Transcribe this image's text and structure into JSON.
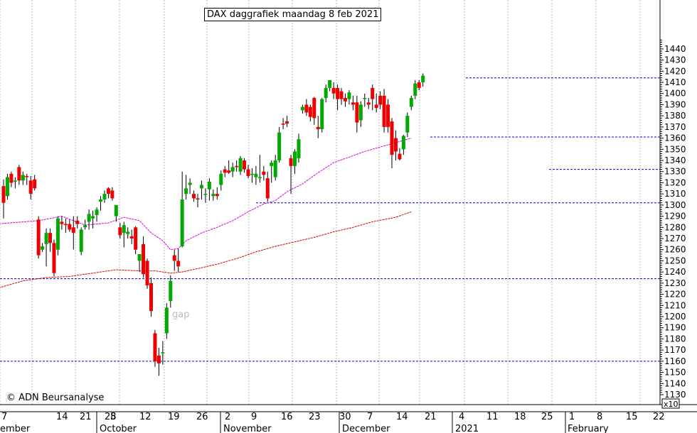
{
  "chart_data": {
    "type": "candlestick",
    "title": "DAX daggrafiek maandag 8 feb 2021",
    "copyright": "© ADN Beursanalyse",
    "annotation": "gap",
    "y_multiplier_label": "x10",
    "ylim": [
      1123,
      1448
    ],
    "y_ticks": [
      1130,
      1140,
      1150,
      1160,
      1170,
      1180,
      1190,
      1200,
      1210,
      1220,
      1230,
      1240,
      1250,
      1260,
      1270,
      1280,
      1290,
      1300,
      1310,
      1320,
      1330,
      1340,
      1350,
      1360,
      1370,
      1380,
      1390,
      1400,
      1410,
      1420,
      1430,
      1440
    ],
    "x_tick_labels": [
      "7",
      "14",
      "21",
      "28",
      "5",
      "12",
      "19",
      "26",
      "2",
      "9",
      "16",
      "23",
      "30",
      "7",
      "14",
      "21",
      "4",
      "11",
      "18",
      "25",
      "1",
      "8",
      "15",
      "22"
    ],
    "month_labels": [
      "ember",
      "October",
      "November",
      "December",
      "2021",
      "February"
    ],
    "grid": true,
    "colors": {
      "up": "#00aa00",
      "down": "#ee0000",
      "ma_short": "#dd00dd",
      "ma_long": "#dd0000",
      "levels": "#0000cc",
      "grid": "#bbbbbb"
    },
    "support_resistance_levels": [
      1414,
      1361,
      1332,
      1302,
      1234,
      1160
    ],
    "candles": [
      {
        "date": "2020-09-04",
        "open": 1317,
        "high": 1323,
        "low": 1288,
        "close": 1302
      },
      {
        "date": "2020-09-07",
        "open": 1308,
        "high": 1328,
        "low": 1305,
        "close": 1325
      },
      {
        "date": "2020-09-08",
        "open": 1328,
        "high": 1330,
        "low": 1316,
        "close": 1320
      },
      {
        "date": "2020-09-09",
        "open": 1322,
        "high": 1325,
        "low": 1315,
        "close": 1322
      },
      {
        "date": "2020-09-10",
        "open": 1334,
        "high": 1336,
        "low": 1318,
        "close": 1322
      },
      {
        "date": "2020-09-11",
        "open": 1322,
        "high": 1330,
        "low": 1318,
        "close": 1327
      },
      {
        "date": "2020-09-14",
        "open": 1326,
        "high": 1328,
        "low": 1318,
        "close": 1325
      },
      {
        "date": "2020-09-15",
        "open": 1322,
        "high": 1326,
        "low": 1305,
        "close": 1310
      },
      {
        "date": "2020-09-16",
        "open": 1323,
        "high": 1327,
        "low": 1313,
        "close": 1315
      },
      {
        "date": "2020-09-17",
        "open": 1287,
        "high": 1290,
        "low": 1252,
        "close": 1255
      },
      {
        "date": "2020-09-18",
        "open": 1260,
        "high": 1266,
        "low": 1258,
        "close": 1263
      },
      {
        "date": "2020-09-21",
        "open": 1265,
        "high": 1279,
        "low": 1245,
        "close": 1275
      },
      {
        "date": "2020-09-22",
        "open": 1275,
        "high": 1279,
        "low": 1258,
        "close": 1266
      },
      {
        "date": "2020-09-23",
        "open": 1266,
        "high": 1269,
        "low": 1236,
        "close": 1239
      },
      {
        "date": "2020-09-24",
        "open": 1260,
        "high": 1290,
        "low": 1255,
        "close": 1288
      },
      {
        "date": "2020-09-25",
        "open": 1285,
        "high": 1290,
        "low": 1278,
        "close": 1283
      },
      {
        "date": "2020-09-28",
        "open": 1283,
        "high": 1288,
        "low": 1275,
        "close": 1282
      },
      {
        "date": "2020-09-29",
        "open": 1283,
        "high": 1287,
        "low": 1276,
        "close": 1278
      },
      {
        "date": "2020-09-30",
        "open": 1280,
        "high": 1290,
        "low": 1260,
        "close": 1275
      },
      {
        "date": "2020-10-01",
        "open": 1286,
        "high": 1290,
        "low": 1279,
        "close": 1283
      },
      {
        "date": "2020-10-02",
        "open": 1258,
        "high": 1280,
        "low": 1255,
        "close": 1278
      },
      {
        "date": "2020-10-05",
        "open": 1280,
        "high": 1287,
        "low": 1278,
        "close": 1282
      },
      {
        "date": "2020-10-06",
        "open": 1285,
        "high": 1296,
        "low": 1278,
        "close": 1292
      },
      {
        "date": "2020-10-07",
        "open": 1288,
        "high": 1295,
        "low": 1279,
        "close": 1290
      },
      {
        "date": "2020-10-08",
        "open": 1291,
        "high": 1298,
        "low": 1285,
        "close": 1296
      },
      {
        "date": "2020-10-09",
        "open": 1303,
        "high": 1308,
        "low": 1295,
        "close": 1305
      },
      {
        "date": "2020-10-12",
        "open": 1305,
        "high": 1313,
        "low": 1302,
        "close": 1310
      },
      {
        "date": "2020-10-13",
        "open": 1315,
        "high": 1316,
        "low": 1306,
        "close": 1310
      },
      {
        "date": "2020-10-14",
        "open": 1313,
        "high": 1316,
        "low": 1304,
        "close": 1306
      },
      {
        "date": "2020-10-15",
        "open": 1290,
        "high": 1297,
        "low": 1285,
        "close": 1300
      },
      {
        "date": "2020-10-16",
        "open": 1280,
        "high": 1284,
        "low": 1270,
        "close": 1273
      },
      {
        "date": "2020-10-19",
        "open": 1275,
        "high": 1285,
        "low": 1262,
        "close": 1282
      },
      {
        "date": "2020-10-20",
        "open": 1274,
        "high": 1280,
        "low": 1270,
        "close": 1276
      },
      {
        "date": "2020-10-21",
        "open": 1272,
        "high": 1278,
        "low": 1265,
        "close": 1270
      },
      {
        "date": "2020-10-22",
        "open": 1280,
        "high": 1281,
        "low": 1256,
        "close": 1260
      },
      {
        "date": "2020-10-23",
        "open": 1250,
        "high": 1255,
        "low": 1240,
        "close": 1256
      },
      {
        "date": "2020-10-26",
        "open": 1265,
        "high": 1272,
        "low": 1235,
        "close": 1238
      },
      {
        "date": "2020-10-27",
        "open": 1250,
        "high": 1252,
        "low": 1225,
        "close": 1228
      },
      {
        "date": "2020-10-28",
        "open": 1230,
        "high": 1235,
        "low": 1200,
        "close": 1205
      },
      {
        "date": "2020-10-29",
        "open": 1185,
        "high": 1188,
        "low": 1155,
        "close": 1160
      },
      {
        "date": "2020-10-30",
        "open": 1165,
        "high": 1172,
        "low": 1147,
        "close": 1158
      },
      {
        "date": "2020-11-02",
        "open": 1168,
        "high": 1178,
        "low": 1157,
        "close": 1168
      },
      {
        "date": "2020-11-03",
        "open": 1185,
        "high": 1212,
        "low": 1180,
        "close": 1208
      },
      {
        "date": "2020-11-04",
        "open": 1214,
        "high": 1237,
        "low": 1208,
        "close": 1232
      },
      {
        "date": "2020-11-05",
        "open": 1255,
        "high": 1260,
        "low": 1241,
        "close": 1250
      },
      {
        "date": "2020-11-06",
        "open": 1250,
        "high": 1261,
        "low": 1240,
        "close": 1245
      },
      {
        "date": "2020-11-09",
        "open": 1263,
        "high": 1330,
        "low": 1262,
        "close": 1305
      },
      {
        "date": "2020-11-10",
        "open": 1310,
        "high": 1327,
        "low": 1305,
        "close": 1315
      },
      {
        "date": "2020-11-11",
        "open": 1318,
        "high": 1324,
        "low": 1310,
        "close": 1320
      },
      {
        "date": "2020-11-12",
        "open": 1310,
        "high": 1313,
        "low": 1303,
        "close": 1306
      },
      {
        "date": "2020-11-13",
        "open": 1306,
        "high": 1310,
        "low": 1298,
        "close": 1305
      },
      {
        "date": "2020-11-16",
        "open": 1315,
        "high": 1322,
        "low": 1305,
        "close": 1318
      },
      {
        "date": "2020-11-17",
        "open": 1310,
        "high": 1315,
        "low": 1302,
        "close": 1310
      },
      {
        "date": "2020-11-18",
        "open": 1314,
        "high": 1324,
        "low": 1304,
        "close": 1321
      },
      {
        "date": "2020-11-19",
        "open": 1308,
        "high": 1314,
        "low": 1304,
        "close": 1310
      },
      {
        "date": "2020-11-20",
        "open": 1310,
        "high": 1316,
        "low": 1305,
        "close": 1308
      },
      {
        "date": "2020-11-23",
        "open": 1318,
        "high": 1331,
        "low": 1313,
        "close": 1328
      },
      {
        "date": "2020-11-24",
        "open": 1332,
        "high": 1335,
        "low": 1325,
        "close": 1329
      },
      {
        "date": "2020-11-25",
        "open": 1331,
        "high": 1340,
        "low": 1328,
        "close": 1329
      },
      {
        "date": "2020-11-26",
        "open": 1330,
        "high": 1338,
        "low": 1325,
        "close": 1334
      },
      {
        "date": "2020-11-27",
        "open": 1335,
        "high": 1340,
        "low": 1330,
        "close": 1334
      },
      {
        "date": "2020-11-30",
        "open": 1330,
        "high": 1344,
        "low": 1327,
        "close": 1342
      },
      {
        "date": "2020-12-01",
        "open": 1340,
        "high": 1342,
        "low": 1329,
        "close": 1332
      },
      {
        "date": "2020-12-02",
        "open": 1332,
        "high": 1336,
        "low": 1324,
        "close": 1326
      },
      {
        "date": "2020-12-03",
        "open": 1328,
        "high": 1333,
        "low": 1320,
        "close": 1328
      },
      {
        "date": "2020-12-04",
        "open": 1325,
        "high": 1335,
        "low": 1318,
        "close": 1328
      },
      {
        "date": "2020-12-07",
        "open": 1325,
        "high": 1345,
        "low": 1320,
        "close": 1325
      },
      {
        "date": "2020-12-08",
        "open": 1330,
        "high": 1335,
        "low": 1322,
        "close": 1327
      },
      {
        "date": "2020-12-09",
        "open": 1324,
        "high": 1330,
        "low": 1303,
        "close": 1306
      },
      {
        "date": "2020-12-10",
        "open": 1335,
        "high": 1340,
        "low": 1320,
        "close": 1338
      },
      {
        "date": "2020-12-11",
        "open": 1325,
        "high": 1345,
        "low": 1322,
        "close": 1340
      },
      {
        "date": "2020-12-14",
        "open": 1340,
        "high": 1370,
        "low": 1338,
        "close": 1365
      },
      {
        "date": "2020-12-15",
        "open": 1373,
        "high": 1378,
        "low": 1368,
        "close": 1372
      },
      {
        "date": "2020-12-16",
        "open": 1375,
        "high": 1380,
        "low": 1370,
        "close": 1373
      },
      {
        "date": "2020-12-17",
        "open": 1342,
        "high": 1345,
        "low": 1310,
        "close": 1335
      },
      {
        "date": "2020-12-18",
        "open": 1335,
        "high": 1350,
        "low": 1328,
        "close": 1348
      },
      {
        "date": "2020-12-21",
        "open": 1342,
        "high": 1364,
        "low": 1338,
        "close": 1359
      },
      {
        "date": "2020-12-22",
        "open": 1385,
        "high": 1390,
        "low": 1382,
        "close": 1388
      },
      {
        "date": "2020-12-23",
        "open": 1390,
        "high": 1395,
        "low": 1380,
        "close": 1383
      },
      {
        "date": "2020-12-24",
        "open": 1388,
        "high": 1390,
        "low": 1375,
        "close": 1379
      },
      {
        "date": "2020-12-28",
        "open": 1396,
        "high": 1397,
        "low": 1372,
        "close": 1378
      },
      {
        "date": "2020-12-29",
        "open": 1370,
        "high": 1380,
        "low": 1360,
        "close": 1368
      },
      {
        "date": "2020-12-30",
        "open": 1368,
        "high": 1396,
        "low": 1365,
        "close": 1395
      },
      {
        "date": "2021-01-04",
        "open": 1396,
        "high": 1408,
        "low": 1392,
        "close": 1405
      },
      {
        "date": "2021-01-05",
        "open": 1405,
        "high": 1412,
        "low": 1402,
        "close": 1412
      },
      {
        "date": "2021-01-06",
        "open": 1405,
        "high": 1410,
        "low": 1395,
        "close": 1400
      },
      {
        "date": "2021-01-07",
        "open": 1405,
        "high": 1408,
        "low": 1385,
        "close": 1395
      },
      {
        "date": "2021-01-08",
        "open": 1402,
        "high": 1405,
        "low": 1390,
        "close": 1395
      },
      {
        "date": "2021-01-11",
        "open": 1396,
        "high": 1400,
        "low": 1388,
        "close": 1393
      },
      {
        "date": "2021-01-12",
        "open": 1395,
        "high": 1403,
        "low": 1390,
        "close": 1401
      },
      {
        "date": "2021-01-13",
        "open": 1392,
        "high": 1398,
        "low": 1385,
        "close": 1390
      },
      {
        "date": "2021-01-14",
        "open": 1392,
        "high": 1398,
        "low": 1365,
        "close": 1374
      },
      {
        "date": "2021-01-15",
        "open": 1376,
        "high": 1393,
        "low": 1370,
        "close": 1390
      },
      {
        "date": "2021-01-18",
        "open": 1395,
        "high": 1400,
        "low": 1388,
        "close": 1396
      },
      {
        "date": "2021-01-19",
        "open": 1392,
        "high": 1396,
        "low": 1386,
        "close": 1390
      },
      {
        "date": "2021-01-20",
        "open": 1405,
        "high": 1408,
        "low": 1385,
        "close": 1395
      },
      {
        "date": "2021-01-21",
        "open": 1390,
        "high": 1400,
        "low": 1383,
        "close": 1387
      },
      {
        "date": "2021-01-22",
        "open": 1398,
        "high": 1402,
        "low": 1386,
        "close": 1390
      },
      {
        "date": "2021-01-25",
        "open": 1398,
        "high": 1404,
        "low": 1365,
        "close": 1370
      },
      {
        "date": "2021-01-26",
        "open": 1390,
        "high": 1395,
        "low": 1365,
        "close": 1370
      },
      {
        "date": "2021-01-27",
        "open": 1375,
        "high": 1378,
        "low": 1333,
        "close": 1345
      },
      {
        "date": "2021-01-28",
        "open": 1360,
        "high": 1367,
        "low": 1340,
        "close": 1348
      },
      {
        "date": "2021-01-29",
        "open": 1346,
        "high": 1351,
        "low": 1340,
        "close": 1341
      },
      {
        "date": "2021-02-01",
        "open": 1350,
        "high": 1363,
        "low": 1345,
        "close": 1362
      },
      {
        "date": "2021-02-02",
        "open": 1365,
        "high": 1383,
        "low": 1361,
        "close": 1380
      },
      {
        "date": "2021-02-03",
        "open": 1388,
        "high": 1398,
        "low": 1385,
        "close": 1396
      },
      {
        "date": "2021-02-04",
        "open": 1398,
        "high": 1412,
        "low": 1395,
        "close": 1409
      },
      {
        "date": "2021-02-05",
        "open": 1410,
        "high": 1412,
        "low": 1403,
        "close": 1405
      },
      {
        "date": "2021-02-08",
        "open": 1410,
        "high": 1418,
        "low": 1406,
        "close": 1416
      }
    ],
    "ma_short": [
      [
        -2,
        1283
      ],
      [
        9,
        1286
      ],
      [
        15,
        1290
      ],
      [
        21,
        1282
      ],
      [
        27,
        1284
      ],
      [
        31,
        1289
      ],
      [
        35,
        1286
      ],
      [
        38,
        1275
      ],
      [
        41,
        1268
      ],
      [
        43,
        1260
      ],
      [
        45,
        1261
      ],
      [
        47,
        1268
      ],
      [
        51,
        1275
      ],
      [
        55,
        1280
      ],
      [
        59,
        1286
      ],
      [
        63,
        1294
      ],
      [
        67,
        1301
      ],
      [
        70,
        1304
      ],
      [
        73,
        1312
      ],
      [
        77,
        1319
      ],
      [
        81,
        1329
      ],
      [
        85,
        1338
      ],
      [
        89,
        1343
      ],
      [
        93,
        1348
      ],
      [
        97,
        1352
      ],
      [
        101,
        1356
      ],
      [
        105,
        1360
      ]
    ],
    "ma_long": [
      [
        -2,
        1225
      ],
      [
        5,
        1232
      ],
      [
        11,
        1235
      ],
      [
        17,
        1236
      ],
      [
        23,
        1239
      ],
      [
        29,
        1242
      ],
      [
        35,
        1241
      ],
      [
        39,
        1241
      ],
      [
        43,
        1239
      ],
      [
        46,
        1240
      ],
      [
        50,
        1243
      ],
      [
        55,
        1247
      ],
      [
        60,
        1252
      ],
      [
        65,
        1258
      ],
      [
        70,
        1263
      ],
      [
        75,
        1267
      ],
      [
        80,
        1271
      ],
      [
        85,
        1276
      ],
      [
        90,
        1280
      ],
      [
        95,
        1285
      ],
      [
        101,
        1289
      ],
      [
        105,
        1294
      ]
    ]
  }
}
